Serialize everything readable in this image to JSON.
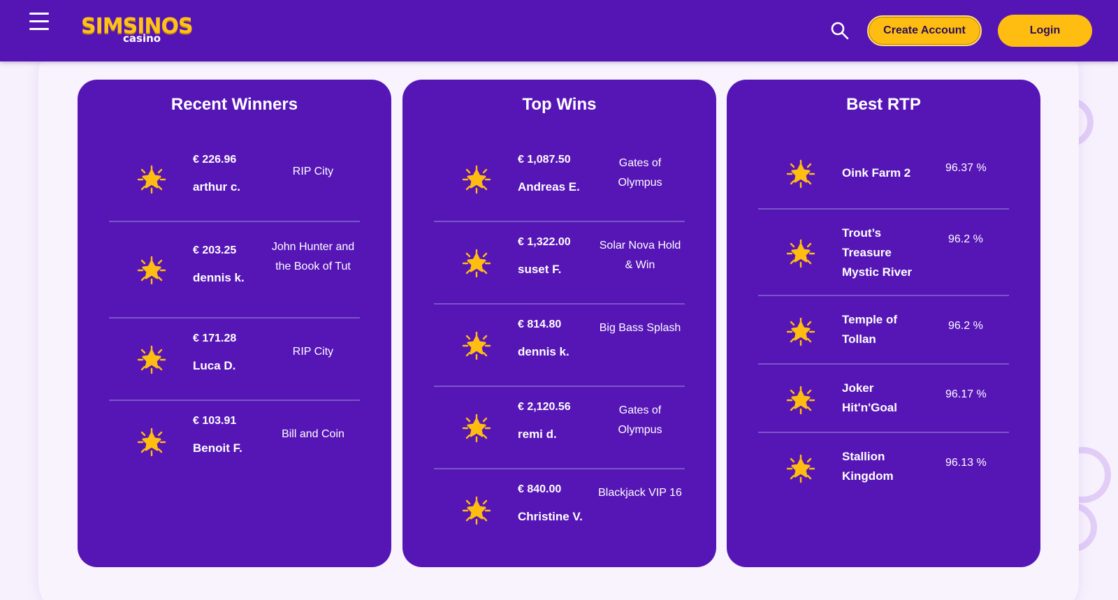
{
  "header": {
    "logo_main": "SIMSINOS",
    "logo_sub": "casino",
    "create_account_label": "Create Account",
    "login_label": "Login"
  },
  "colors": {
    "brand_purple": "#5515b4",
    "panel_purple": "#5616b6",
    "accent_yellow": "#ffbd12",
    "page_bg": "#f7f1fd"
  },
  "icons": {
    "menu": "hamburger-icon",
    "search": "search-icon",
    "row": "sun-star-icon"
  },
  "recent_winners": {
    "title": "Recent Winners",
    "rows": [
      {
        "amount": "€ 226.96",
        "player": "arthur c.",
        "game": "RIP City"
      },
      {
        "amount": "€ 203.25",
        "player": "dennis k.",
        "game": "John Hunter and the Book of Tut"
      },
      {
        "amount": "€ 171.28",
        "player": "Luca D.",
        "game": "RIP City"
      },
      {
        "amount": "€ 103.91",
        "player": "Benoit F.",
        "game": "Bill and Coin"
      }
    ]
  },
  "top_wins": {
    "title": "Top Wins",
    "rows": [
      {
        "amount": "€ 1,087.50",
        "player": "Andreas E.",
        "game": "Gates of Olympus"
      },
      {
        "amount": "€ 1,322.00",
        "player": "suset F.",
        "game": "Solar Nova Hold & Win"
      },
      {
        "amount": "€ 814.80",
        "player": "dennis k.",
        "game": "Big Bass Splash"
      },
      {
        "amount": "€ 2,120.56",
        "player": "remi d.",
        "game": "Gates of Olympus"
      },
      {
        "amount": "€ 840.00",
        "player": "Christine V.",
        "game": "Blackjack VIP 16"
      }
    ]
  },
  "best_rtp": {
    "title": "Best RTP",
    "rows": [
      {
        "game": "Oink Farm 2",
        "rtp": "96.37 %"
      },
      {
        "game": "Trout’s Treasure Mystic River",
        "rtp": "96.2 %"
      },
      {
        "game": "Temple of Tollan",
        "rtp": "96.2 %"
      },
      {
        "game": "Joker Hit'n'Goal",
        "rtp": "96.17 %"
      },
      {
        "game": "Stallion Kingdom",
        "rtp": "96.13 %"
      }
    ]
  }
}
